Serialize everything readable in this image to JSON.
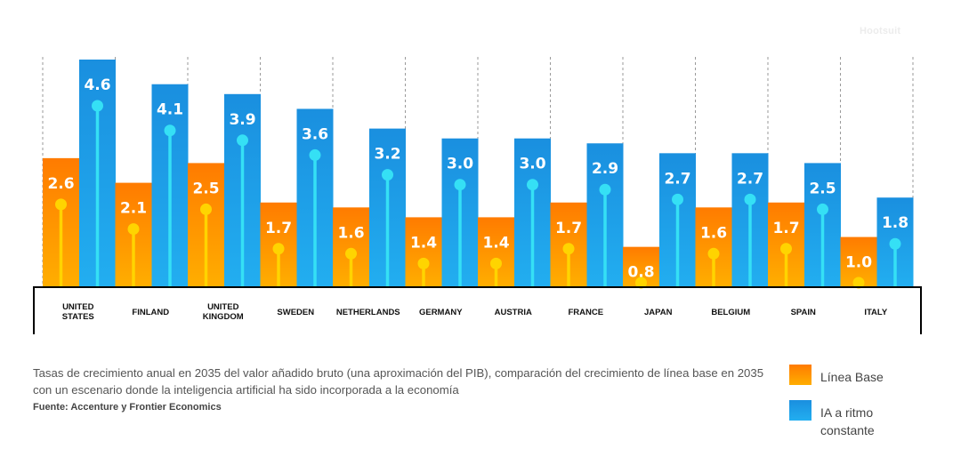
{
  "watermark": "Hootsuit",
  "caption": "Tasas de crecimiento anual en 2035 del valor añadido bruto (una aproximación del PIB), comparación del crecimiento de línea base en 2035 con un escenario donde la inteligencia artificial ha sido incorporada a la economía",
  "source": "Fuente: Accenture y Frontier Economics",
  "legend": [
    {
      "label": "Línea Base",
      "color": "#ff8a00"
    },
    {
      "label": "IA a ritmo constante",
      "color": "#1e9ce6"
    }
  ],
  "chart_data": {
    "type": "bar",
    "categories": [
      "UNITED STATES",
      "FINLAND",
      "UNITED KINGDOM",
      "SWEDEN",
      "NETHERLANDS",
      "GERMANY",
      "AUSTRIA",
      "FRANCE",
      "JAPAN",
      "BELGIUM",
      "SPAIN",
      "ITALY"
    ],
    "series": [
      {
        "name": "Línea Base",
        "values": [
          2.6,
          2.1,
          2.5,
          1.7,
          1.6,
          1.4,
          1.4,
          1.7,
          0.8,
          1.6,
          1.7,
          1.0
        ],
        "labels": [
          "2.6",
          "2.1",
          "2.5",
          "1.7",
          "1.6",
          "1.4",
          "1.4",
          "1.7",
          "0.8",
          "1.6",
          "1.7",
          "1.0"
        ],
        "color": "#ff8a00",
        "stem_color": "#ffd400"
      },
      {
        "name": "IA a ritmo constante",
        "values": [
          4.6,
          4.1,
          3.9,
          3.6,
          3.2,
          3.0,
          3.0,
          2.9,
          2.7,
          2.7,
          2.5,
          1.8
        ],
        "labels": [
          "4.6",
          "4.1",
          "3.9",
          "3.6",
          "3.2",
          "3.0",
          "3.0",
          "2.9",
          "2.7",
          "2.7",
          "2.5",
          "1.8"
        ],
        "color": "#1e9ce6",
        "stem_color": "#35e0f5"
      }
    ],
    "ylim": [
      0,
      4.6
    ],
    "grid": "vertical dashed separators"
  }
}
